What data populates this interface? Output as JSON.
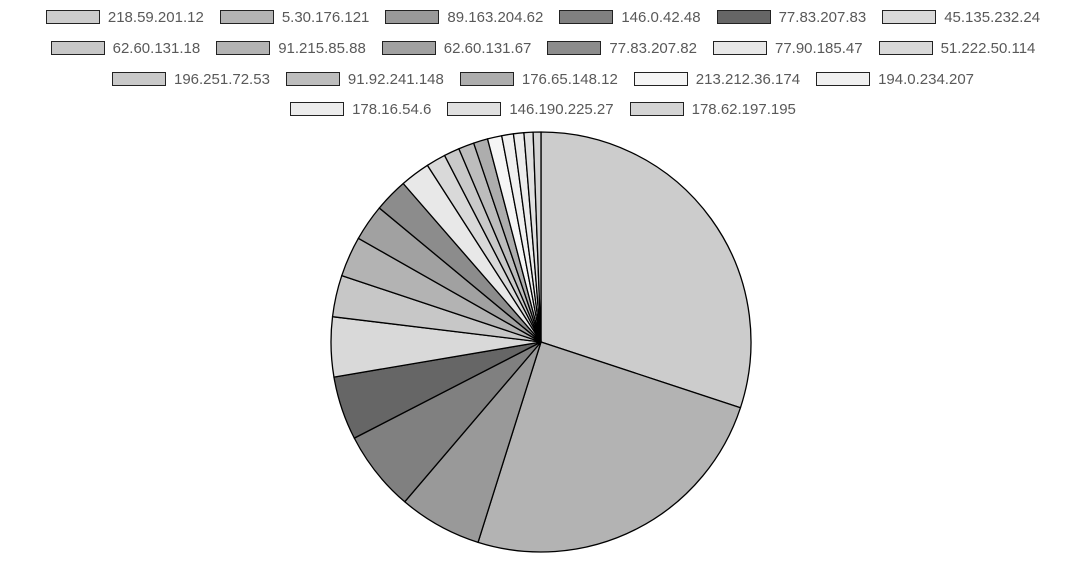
{
  "chart_data": {
    "type": "pie",
    "legend": {
      "position": "top"
    },
    "slices": [
      {
        "label": "218.59.201.12",
        "value": 30.1,
        "color": "#cccccc"
      },
      {
        "label": "5.30.176.121",
        "value": 24.8,
        "color": "#b3b3b3"
      },
      {
        "label": "89.163.204.62",
        "value": 6.4,
        "color": "#999999"
      },
      {
        "label": "146.0.42.48",
        "value": 6.2,
        "color": "#808080"
      },
      {
        "label": "77.83.207.83",
        "value": 4.9,
        "color": "#666666"
      },
      {
        "label": "45.135.232.24",
        "value": 4.6,
        "color": "#d9d9d9"
      },
      {
        "label": "62.60.131.18",
        "value": 3.2,
        "color": "#c7c7c7"
      },
      {
        "label": "91.215.85.88",
        "value": 3.1,
        "color": "#b3b3b3"
      },
      {
        "label": "62.60.131.67",
        "value": 2.8,
        "color": "#a1a1a1"
      },
      {
        "label": "77.83.207.82",
        "value": 2.6,
        "color": "#8c8c8c"
      },
      {
        "label": "77.90.185.47",
        "value": 2.3,
        "color": "#e8e8e8"
      },
      {
        "label": "51.222.50.114",
        "value": 1.5,
        "color": "#d9d9d9"
      },
      {
        "label": "196.251.72.53",
        "value": 1.2,
        "color": "#c9c9c9"
      },
      {
        "label": "91.92.241.148",
        "value": 1.2,
        "color": "#bdbdbd"
      },
      {
        "label": "176.65.148.12",
        "value": 1.1,
        "color": "#adadad"
      },
      {
        "label": "213.212.36.174",
        "value": 1.1,
        "color": "#f5f5f5"
      },
      {
        "label": "194.0.234.207",
        "value": 0.9,
        "color": "#f0f0f0"
      },
      {
        "label": "178.16.54.6",
        "value": 0.8,
        "color": "#ececec"
      },
      {
        "label": "146.190.225.27",
        "value": 0.7,
        "color": "#e0e0e0"
      },
      {
        "label": "178.62.197.195",
        "value": 0.6,
        "color": "#d4d4d4"
      }
    ]
  }
}
